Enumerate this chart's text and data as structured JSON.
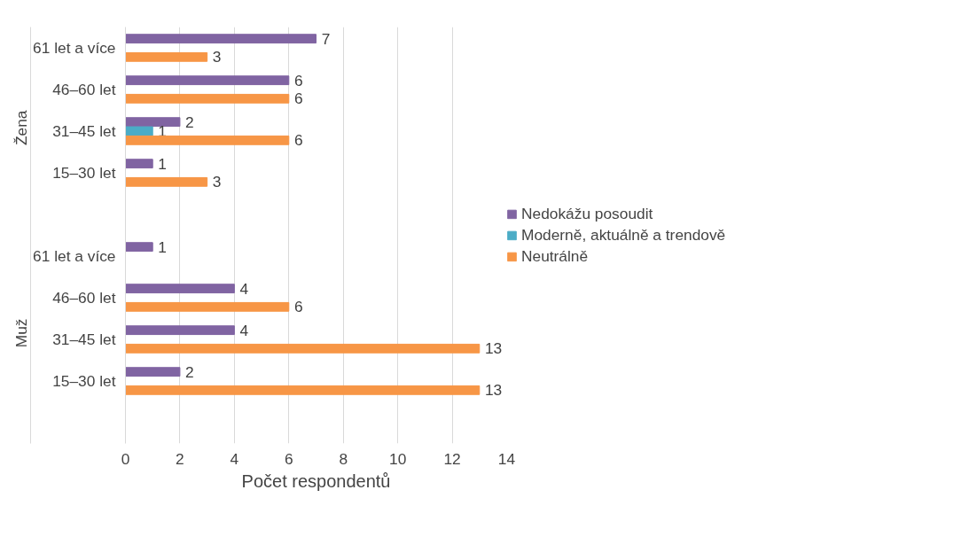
{
  "chart_data": {
    "type": "bar",
    "orientation": "horizontal",
    "xlabel": "Počet respondentů",
    "categories": [
      "61 let a více",
      "46–60 let",
      "31–45 let",
      "15–30 let",
      "61 let a více",
      "46–60 let",
      "31–45 let",
      "15–30 let"
    ],
    "annotations": [
      "Žena",
      "Muž"
    ],
    "series": [
      {
        "name": "Nedokážu posoudit",
        "color": "#8064a2",
        "values": [
          7,
          6,
          2,
          1,
          1,
          4,
          4,
          2
        ]
      },
      {
        "name": "Moderně, aktuálně a trendově",
        "color": "#4bacc6",
        "values": [
          null,
          null,
          1,
          null,
          null,
          null,
          null,
          null
        ]
      },
      {
        "name": "Neutrálně",
        "color": "#f79646",
        "values": [
          3,
          6,
          6,
          3,
          null,
          6,
          13,
          13
        ]
      }
    ],
    "xlim": [
      0,
      14
    ],
    "xticks": [
      0,
      2,
      4,
      6,
      8,
      10,
      12,
      14
    ],
    "grid": "x",
    "legend": "right",
    "data_labels": true
  }
}
